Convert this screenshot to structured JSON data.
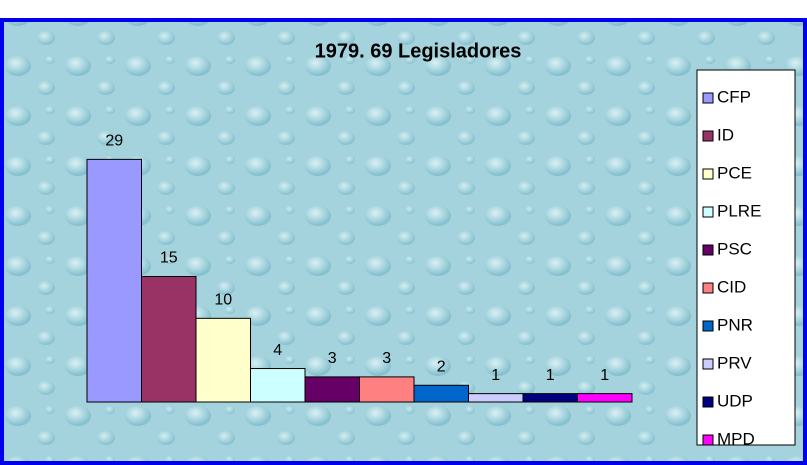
{
  "chart_data": {
    "type": "bar",
    "title": "1979.  69 Legisladores",
    "categories": [
      "CFP",
      "ID",
      "PCE",
      "PLRE",
      "PSC",
      "CID",
      "PNR",
      "PRV",
      "UDP",
      "MPD"
    ],
    "values": [
      29,
      15,
      10,
      4,
      3,
      3,
      2,
      1,
      1,
      1
    ],
    "colors": [
      "#9999ff",
      "#993366",
      "#ffffcc",
      "#ccffff",
      "#660066",
      "#ff8080",
      "#0066cc",
      "#ccccff",
      "#000080",
      "#ff00ff"
    ],
    "ylim": [
      0,
      30
    ],
    "legend": "right"
  }
}
